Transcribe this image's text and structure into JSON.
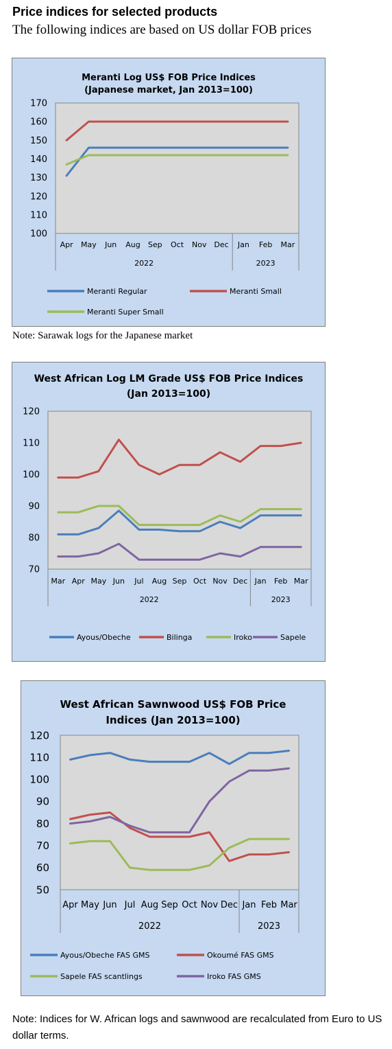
{
  "page": {
    "heading": "Price indices for selected products",
    "subheading": "The following indices are based on US dollar FOB prices",
    "note1": "Note: Sarawak logs for the Japanese market",
    "note2": "Note: Indices for W. African logs and sawnwood are recalculated from Euro to US dollar terms."
  },
  "colors": {
    "panel_bg": "#c6d9f1",
    "plot_bg": "#d9d9d9",
    "blue": "#4a7ebb",
    "red": "#c0504d",
    "green": "#9bbb59",
    "purple": "#8064a2"
  },
  "chart_data": [
    {
      "type": "line",
      "title": "Meranti Log US$ FOB Price Indices",
      "subtitle": "(Japanese market, Jan 2013=100)",
      "categories": [
        "Apr",
        "May",
        "Jun",
        "Aug",
        "Sep",
        "Oct",
        "Nov",
        "Dec",
        "Jan",
        "Feb",
        "Mar"
      ],
      "year_groups": [
        {
          "label": "2022",
          "count": 8
        },
        {
          "label": "2023",
          "count": 3
        }
      ],
      "ylim": [
        100,
        170
      ],
      "yticks": [
        100,
        110,
        120,
        130,
        140,
        150,
        160,
        170
      ],
      "grid": false,
      "legend_position": "bottom",
      "series": [
        {
          "name": "Meranti Regular",
          "color": "#4a7ebb",
          "values": [
            131,
            146,
            146,
            146,
            146,
            146,
            146,
            146,
            146,
            146,
            146
          ]
        },
        {
          "name": "Meranti Small",
          "color": "#c0504d",
          "values": [
            150,
            160,
            160,
            160,
            160,
            160,
            160,
            160,
            160,
            160,
            160
          ]
        },
        {
          "name": "Meranti Super Small",
          "color": "#9bbb59",
          "values": [
            137,
            142,
            142,
            142,
            142,
            142,
            142,
            142,
            142,
            142,
            142
          ]
        }
      ]
    },
    {
      "type": "line",
      "title": "West African Log LM Grade US$ FOB Price Indices",
      "subtitle": "(Jan 2013=100)",
      "categories": [
        "Mar",
        "Apr",
        "May",
        "Jun",
        "Jul",
        "Aug",
        "Sep",
        "Oct",
        "Nov",
        "Dec",
        "Jan",
        "Feb",
        "Mar"
      ],
      "year_groups": [
        {
          "label": "2022",
          "count": 10
        },
        {
          "label": "2023",
          "count": 3
        }
      ],
      "ylim": [
        70,
        120
      ],
      "yticks": [
        70,
        80,
        90,
        100,
        110,
        120
      ],
      "grid": false,
      "legend_position": "bottom",
      "series": [
        {
          "name": "Ayous/Obeche",
          "color": "#4a7ebb",
          "values": [
            81,
            81,
            83,
            88.5,
            82.5,
            82.5,
            82,
            82,
            85,
            83,
            87,
            87,
            87
          ]
        },
        {
          "name": "Bilinga",
          "color": "#c0504d",
          "values": [
            99,
            99,
            101,
            111,
            103,
            100,
            103,
            103,
            107,
            104,
            109,
            109,
            110
          ]
        },
        {
          "name": "Iroko",
          "color": "#9bbb59",
          "values": [
            88,
            88,
            90,
            90,
            84,
            84,
            84,
            84,
            87,
            85,
            89,
            89,
            89
          ]
        },
        {
          "name": "Sapele",
          "color": "#8064a2",
          "values": [
            74,
            74,
            75,
            78,
            73,
            73,
            73,
            73,
            75,
            74,
            77,
            77,
            77
          ]
        }
      ]
    },
    {
      "type": "line",
      "title": "West African Sawnwood US$ FOB Price",
      "subtitle": "Indices (Jan 2013=100)",
      "categories": [
        "Apr",
        "May",
        "Jun",
        "Jul",
        "Aug",
        "Sep",
        "Oct",
        "Nov",
        "Dec",
        "Jan",
        "Feb",
        "Mar"
      ],
      "year_groups": [
        {
          "label": "2022",
          "count": 9
        },
        {
          "label": "2023",
          "count": 3
        }
      ],
      "ylim": [
        50,
        120
      ],
      "yticks": [
        50,
        60,
        70,
        80,
        90,
        100,
        110,
        120
      ],
      "grid": false,
      "legend_position": "bottom",
      "series": [
        {
          "name": "Ayous/Obeche  FAS GMS",
          "color": "#4a7ebb",
          "values": [
            109,
            111,
            112,
            109,
            108,
            108,
            108,
            112,
            107,
            112,
            112,
            113
          ]
        },
        {
          "name": "Okoumé  FAS GMS",
          "color": "#c0504d",
          "values": [
            82,
            84,
            85,
            78,
            74,
            74,
            74,
            76,
            63,
            66,
            66,
            67
          ]
        },
        {
          "name": "Sapele FAS scantlings",
          "color": "#9bbb59",
          "values": [
            71,
            72,
            72,
            60,
            59,
            59,
            59,
            61,
            69,
            73,
            73,
            73
          ]
        },
        {
          "name": "Iroko FAS GMS",
          "color": "#8064a2",
          "values": [
            80,
            81,
            83,
            79,
            76,
            76,
            76,
            90,
            99,
            104,
            104,
            105
          ]
        }
      ]
    }
  ]
}
